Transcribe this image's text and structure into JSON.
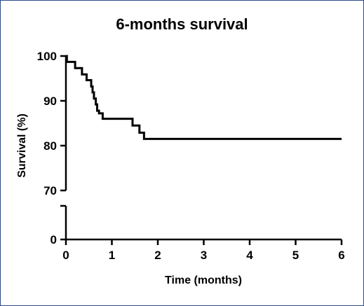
{
  "chart_data": {
    "type": "line",
    "title": "6-months survival",
    "xlabel": "Time (months)",
    "ylabel": "Survival (%)",
    "xlim": [
      0,
      6
    ],
    "ylim_upper": [
      70,
      100
    ],
    "ylim_lower": [
      0,
      7
    ],
    "y_axis_break": true,
    "x_ticks": [
      "0",
      "1",
      "2",
      "3",
      "4",
      "5",
      "6"
    ],
    "y_ticks": [
      "100",
      "90",
      "80",
      "70",
      "0"
    ],
    "grid": false,
    "series": [
      {
        "step": true,
        "x": [
          0,
          0.02,
          0.2,
          0.35,
          0.45,
          0.55,
          0.58,
          0.61,
          0.65,
          0.68,
          0.72,
          0.8,
          0.9,
          1.0,
          1.45,
          1.6,
          1.7,
          6.0
        ],
        "y": [
          100,
          98.7,
          97.3,
          95.9,
          94.6,
          93.2,
          91.9,
          90.5,
          89.2,
          87.8,
          87.2,
          86.0,
          86.0,
          86.0,
          84.5,
          82.9,
          81.5,
          81.5
        ]
      }
    ],
    "line_color": "#000000"
  }
}
